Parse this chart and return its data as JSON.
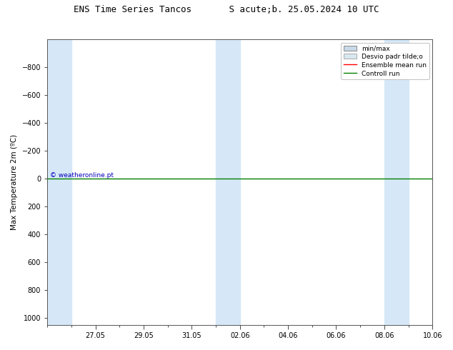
{
  "title": "ENS Time Series Tancos       S acute;b. 25.05.2024 10 UTC",
  "ylabel": "Max Temperature 2m (ºC)",
  "ylim_min": -1000,
  "ylim_max": 1050,
  "yticks": [
    -800,
    -600,
    -400,
    -200,
    0,
    200,
    400,
    600,
    800,
    1000
  ],
  "background_color": "#ffffff",
  "shaded_col_color": "#d6e8f7",
  "x_tick_labels": [
    "27.05",
    "29.05",
    "31.05",
    "02.06",
    "04.06",
    "06.06",
    "08.06",
    "10.06"
  ],
  "watermark": "© weatheronline.pt",
  "watermark_color": "#0000bb",
  "legend_items": [
    {
      "label": "min/max",
      "type": "patch",
      "color": "#c8d8e8",
      "edgecolor": "#888888"
    },
    {
      "label": "Desvio padr tilde;o",
      "type": "patch",
      "color": "#d8e8f0",
      "edgecolor": "#aaaaaa"
    },
    {
      "label": "Ensemble mean run",
      "type": "line",
      "color": "#ff0000",
      "lw": 1.0
    },
    {
      "label": "Controll run",
      "type": "line",
      "color": "#008000",
      "lw": 1.0
    }
  ],
  "hline_color": "#008000",
  "hline_lw": 1.0,
  "title_fontsize": 9,
  "tick_fontsize": 7,
  "ylabel_fontsize": 7.5,
  "legend_fontsize": 6.5
}
